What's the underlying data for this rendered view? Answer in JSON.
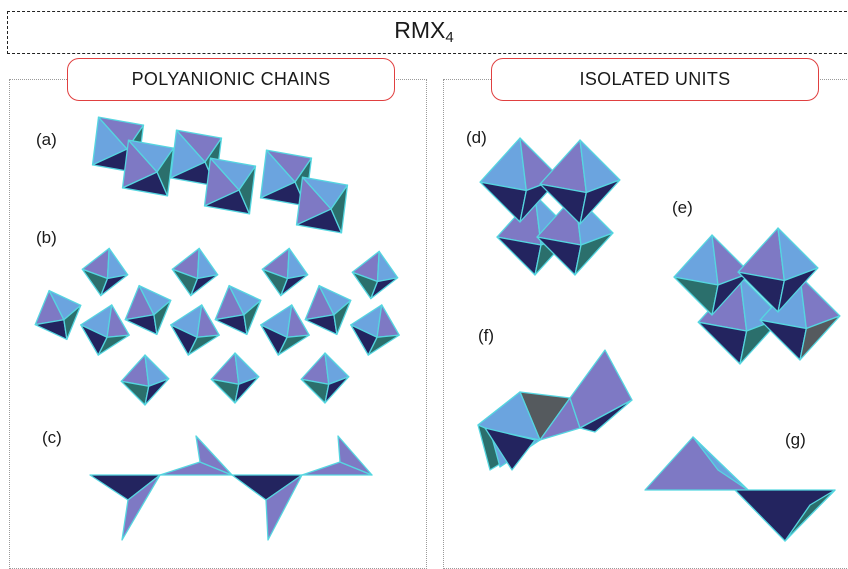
{
  "title": {
    "base": "RMX",
    "subscript": "4"
  },
  "sections": [
    {
      "heading": "POLYANIONIC CHAINS",
      "labels": [
        "(a)",
        "(b)",
        "(c)"
      ]
    },
    {
      "heading": "ISOLATED UNITS",
      "labels": [
        "(d)",
        "(e)",
        "(f)",
        "(g)"
      ]
    }
  ],
  "colors": {
    "face_light": "#7e79c4",
    "face_dark": "#23245f",
    "face_blue": "#6ba4df",
    "face_teal": "#2b6f6c",
    "face_grey": "#555a5e",
    "edge": "#55d6e0",
    "heading_border": "#e04040"
  }
}
